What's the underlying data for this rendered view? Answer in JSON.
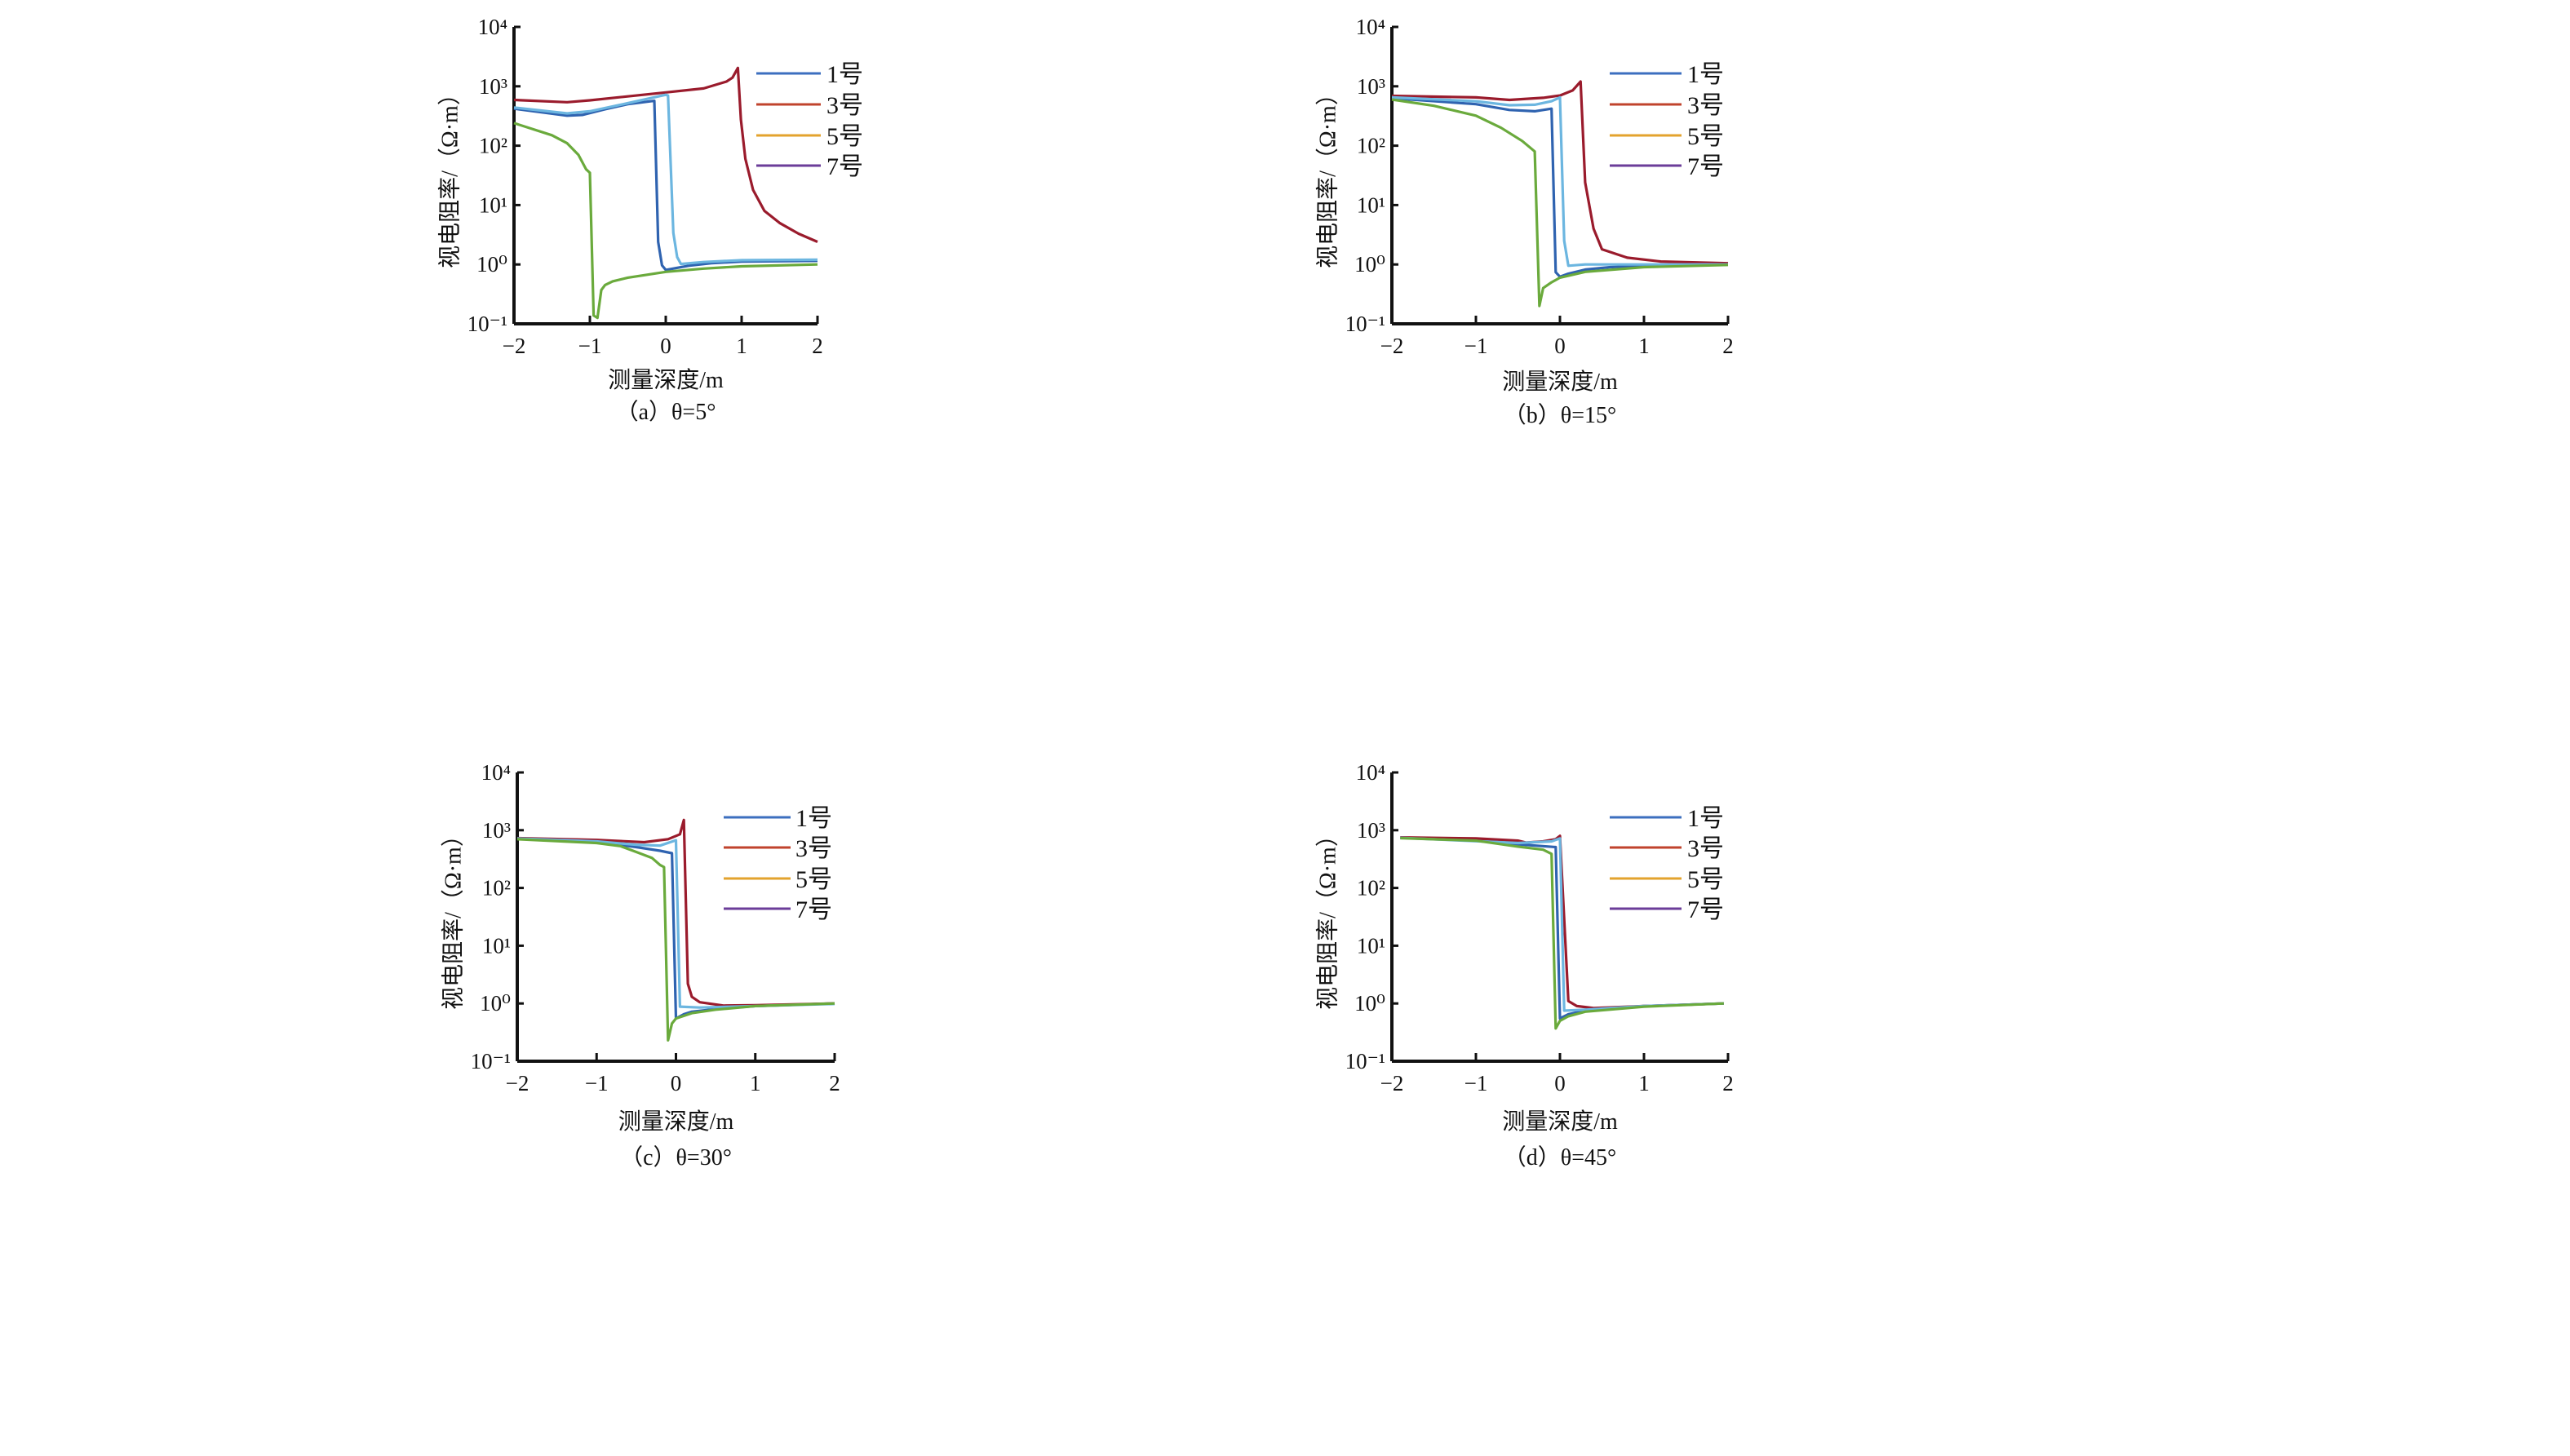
{
  "chart_data": [
    {
      "type": "line",
      "title": "",
      "caption": "（a）θ=5°",
      "xlabel": "测量深度/m",
      "ylabel": "视电阻率/（Ω·m）",
      "xlim": [
        -2,
        2
      ],
      "ylim": [
        0.1,
        10000
      ],
      "yscale": "log",
      "xticks": [
        -2,
        -1,
        0,
        1,
        2
      ],
      "xtick_labels": [
        "−2",
        "−1",
        "0",
        "1",
        "2"
      ],
      "yticks": [
        0.1,
        1,
        10,
        100,
        1000,
        10000
      ],
      "ytick_labels": [
        "10⁻¹",
        "10⁰",
        "10¹",
        "10²",
        "10³",
        "10⁴"
      ],
      "legend": [
        {
          "name": "1号",
          "color": "#3c6fbf"
        },
        {
          "name": "3号",
          "color": "#c0432d"
        },
        {
          "name": "5号",
          "color": "#e3a32e"
        },
        {
          "name": "7号",
          "color": "#6b3d99"
        }
      ],
      "legend_position": "top-right",
      "series": [
        {
          "color": "#2f63b0",
          "x": [
            -2,
            -1.3,
            -1.1,
            -0.8,
            -0.5,
            -0.15,
            -0.1,
            -0.05,
            0,
            0.3,
            0.6,
            1,
            2
          ],
          "y": [
            420,
            320,
            330,
            410,
            500,
            570,
            2.4,
            0.97,
            0.81,
            0.95,
            1.05,
            1.12,
            1.15
          ]
        },
        {
          "color": "#9a1b2c",
          "x": [
            -2,
            -1.3,
            -1,
            0,
            0.5,
            0.8,
            0.88,
            0.95,
            0.99,
            1.05,
            1.15,
            1.3,
            1.5,
            1.75,
            2
          ],
          "y": [
            590,
            540,
            580,
            790,
            920,
            1200,
            1400,
            2040,
            275,
            60,
            18,
            8,
            5,
            3.3,
            2.4
          ]
        },
        {
          "color": "#6cb6e0",
          "x": [
            -2,
            -1.3,
            -1,
            -0.5,
            0,
            0.03,
            0.1,
            0.15,
            0.2,
            0.5,
            1,
            2
          ],
          "y": [
            440,
            350,
            380,
            520,
            720,
            700,
            3.4,
            1.33,
            1.02,
            1.1,
            1.18,
            1.2
          ]
        },
        {
          "color": "#6aaa3c",
          "x": [
            -2,
            -1.5,
            -1.3,
            -1.15,
            -1.05,
            -1,
            -0.95,
            -0.9,
            -0.85,
            -0.8,
            -0.7,
            -0.5,
            0,
            0.5,
            1,
            2
          ],
          "y": [
            240,
            150,
            110,
            70,
            40,
            35,
            0.138,
            0.126,
            0.37,
            0.45,
            0.52,
            0.6,
            0.75,
            0.85,
            0.93,
            1.0
          ]
        }
      ]
    },
    {
      "type": "line",
      "title": "",
      "caption": "（b）θ=15°",
      "xlabel": "测量深度/m",
      "ylabel": "视电阻率/（Ω·m）",
      "xlim": [
        -2,
        2
      ],
      "ylim": [
        0.1,
        10000
      ],
      "yscale": "log",
      "xticks": [
        -2,
        -1,
        0,
        1,
        2
      ],
      "xtick_labels": [
        "−2",
        "−1",
        "0",
        "1",
        "2"
      ],
      "yticks": [
        0.1,
        1,
        10,
        100,
        1000,
        10000
      ],
      "ytick_labels": [
        "10⁻¹",
        "10⁰",
        "10¹",
        "10²",
        "10³",
        "10⁴"
      ],
      "legend": [
        {
          "name": "1号",
          "color": "#3c6fbf"
        },
        {
          "name": "3号",
          "color": "#c0432d"
        },
        {
          "name": "5号",
          "color": "#e3a32e"
        },
        {
          "name": "7号",
          "color": "#6b3d99"
        }
      ],
      "legend_position": "top-right",
      "series": [
        {
          "color": "#2f63b0",
          "x": [
            -2,
            -1,
            -0.6,
            -0.3,
            -0.1,
            -0.05,
            0,
            0.1,
            0.3,
            0.6,
            1,
            2
          ],
          "y": [
            630,
            500,
            400,
            380,
            420,
            0.74,
            0.62,
            0.7,
            0.82,
            0.9,
            0.95,
            1.0
          ]
        },
        {
          "color": "#9a1b2c",
          "x": [
            -2,
            -1,
            -0.6,
            -0.2,
            0,
            0.15,
            0.246,
            0.3,
            0.4,
            0.5,
            0.8,
            1.2,
            2
          ],
          "y": [
            690,
            650,
            590,
            640,
            700,
            850,
            1200,
            24,
            4,
            1.8,
            1.3,
            1.12,
            1.05
          ]
        },
        {
          "color": "#6cb6e0",
          "x": [
            -2,
            -1,
            -0.6,
            -0.3,
            -0.1,
            0,
            0.05,
            0.1,
            0.3,
            1,
            2
          ],
          "y": [
            650,
            560,
            480,
            490,
            560,
            650,
            2.5,
            0.95,
            1.0,
            1.0,
            1.0
          ]
        },
        {
          "color": "#6aaa3c",
          "x": [
            -2,
            -1.5,
            -1,
            -0.7,
            -0.45,
            -0.3,
            -0.245,
            -0.2,
            -0.1,
            0,
            0.3,
            1,
            2
          ],
          "y": [
            600,
            470,
            320,
            200,
            120,
            80,
            0.2,
            0.4,
            0.5,
            0.6,
            0.75,
            0.9,
            0.98
          ]
        }
      ]
    },
    {
      "type": "line",
      "title": "",
      "caption": "（c）θ=30°",
      "xlabel": "测量深度/m",
      "ylabel": "视电阻率/（Ω·m）",
      "xlim": [
        -2,
        2
      ],
      "ylim": [
        0.1,
        10000
      ],
      "yscale": "log",
      "xticks": [
        -2,
        -1,
        0,
        1,
        2
      ],
      "xtick_labels": [
        "−2",
        "−1",
        "0",
        "1",
        "2"
      ],
      "yticks": [
        0.1,
        1,
        10,
        100,
        1000,
        10000
      ],
      "ytick_labels": [
        "10⁻¹",
        "10⁰",
        "10¹",
        "10²",
        "10³",
        "10⁴"
      ],
      "legend": [
        {
          "name": "1号",
          "color": "#3c6fbf"
        },
        {
          "name": "3号",
          "color": "#c0432d"
        },
        {
          "name": "5号",
          "color": "#e3a32e"
        },
        {
          "name": "7号",
          "color": "#6b3d99"
        }
      ],
      "legend_position": "top-right",
      "series": [
        {
          "color": "#2f63b0",
          "x": [
            -2,
            -1,
            -0.5,
            -0.2,
            -0.05,
            0,
            0.1,
            0.2,
            0.5,
            1,
            2
          ],
          "y": [
            730,
            630,
            510,
            440,
            400,
            0.55,
            0.65,
            0.72,
            0.8,
            0.9,
            1.0
          ]
        },
        {
          "color": "#9a1b2c",
          "x": [
            -2,
            -1,
            -0.4,
            -0.1,
            0.05,
            0.1,
            0.15,
            0.2,
            0.3,
            0.6,
            1,
            2
          ],
          "y": [
            730,
            680,
            620,
            700,
            850,
            1500,
            2.2,
            1.3,
            1.05,
            0.92,
            0.93,
            1.0
          ]
        },
        {
          "color": "#6cb6e0",
          "x": [
            -2,
            -1,
            -0.5,
            -0.2,
            0,
            0.05,
            0.3,
            1,
            2
          ],
          "y": [
            720,
            640,
            560,
            540,
            670,
            0.88,
            0.85,
            0.9,
            0.98
          ]
        },
        {
          "color": "#6aaa3c",
          "x": [
            -2,
            -1,
            -0.7,
            -0.5,
            -0.3,
            -0.2,
            -0.15,
            -0.1,
            -0.05,
            0,
            0.2,
            0.5,
            1,
            2
          ],
          "y": [
            700,
            600,
            530,
            420,
            330,
            250,
            230,
            0.23,
            0.45,
            0.55,
            0.68,
            0.78,
            0.9,
            1.0
          ]
        }
      ]
    },
    {
      "type": "line",
      "title": "",
      "caption": "（d）θ=45°",
      "xlabel": "测量深度/m",
      "ylabel": "视电阻率/（Ω·m）",
      "xlim": [
        -2,
        2
      ],
      "ylim": [
        0.1,
        10000
      ],
      "yscale": "log",
      "xticks": [
        -2,
        -1,
        0,
        1,
        2
      ],
      "xtick_labels": [
        "−2",
        "−1",
        "0",
        "1",
        "2"
      ],
      "yticks": [
        0.1,
        1,
        10,
        100,
        1000,
        10000
      ],
      "ytick_labels": [
        "10⁻¹",
        "10⁰",
        "10¹",
        "10²",
        "10³",
        "10⁴"
      ],
      "legend": [
        {
          "name": "1号",
          "color": "#3c6fbf"
        },
        {
          "name": "3号",
          "color": "#c0432d"
        },
        {
          "name": "5号",
          "color": "#e3a32e"
        },
        {
          "name": "7号",
          "color": "#6b3d99"
        }
      ],
      "legend_position": "top-right",
      "series": [
        {
          "color": "#2f63b0",
          "x": [
            -1.9,
            -1,
            -0.5,
            -0.05,
            0,
            0.1,
            0.3,
            1,
            1.95
          ],
          "y": [
            740,
            680,
            570,
            510,
            0.55,
            0.65,
            0.75,
            0.9,
            1.0
          ]
        },
        {
          "color": "#9a1b2c",
          "x": [
            -1.9,
            -1,
            -0.5,
            -0.4,
            -0.2,
            -0.05,
            0,
            0.1,
            0.2,
            0.4,
            1,
            1.95
          ],
          "y": [
            750,
            720,
            660,
            610,
            640,
            700,
            800,
            1.1,
            0.9,
            0.83,
            0.9,
            1.0
          ]
        },
        {
          "color": "#6cb6e0",
          "x": [
            -1.9,
            -0.5,
            -0.1,
            0,
            0.05,
            0.3,
            1,
            1.95
          ],
          "y": [
            740,
            600,
            640,
            720,
            0.75,
            0.78,
            0.9,
            1.0
          ]
        },
        {
          "color": "#6aaa3c",
          "x": [
            -1.9,
            -1,
            -0.5,
            -0.2,
            -0.1,
            -0.05,
            0,
            0.1,
            0.3,
            1,
            1.95
          ],
          "y": [
            730,
            660,
            520,
            460,
            390,
            0.37,
            0.5,
            0.6,
            0.72,
            0.88,
            1.0
          ]
        }
      ]
    }
  ]
}
